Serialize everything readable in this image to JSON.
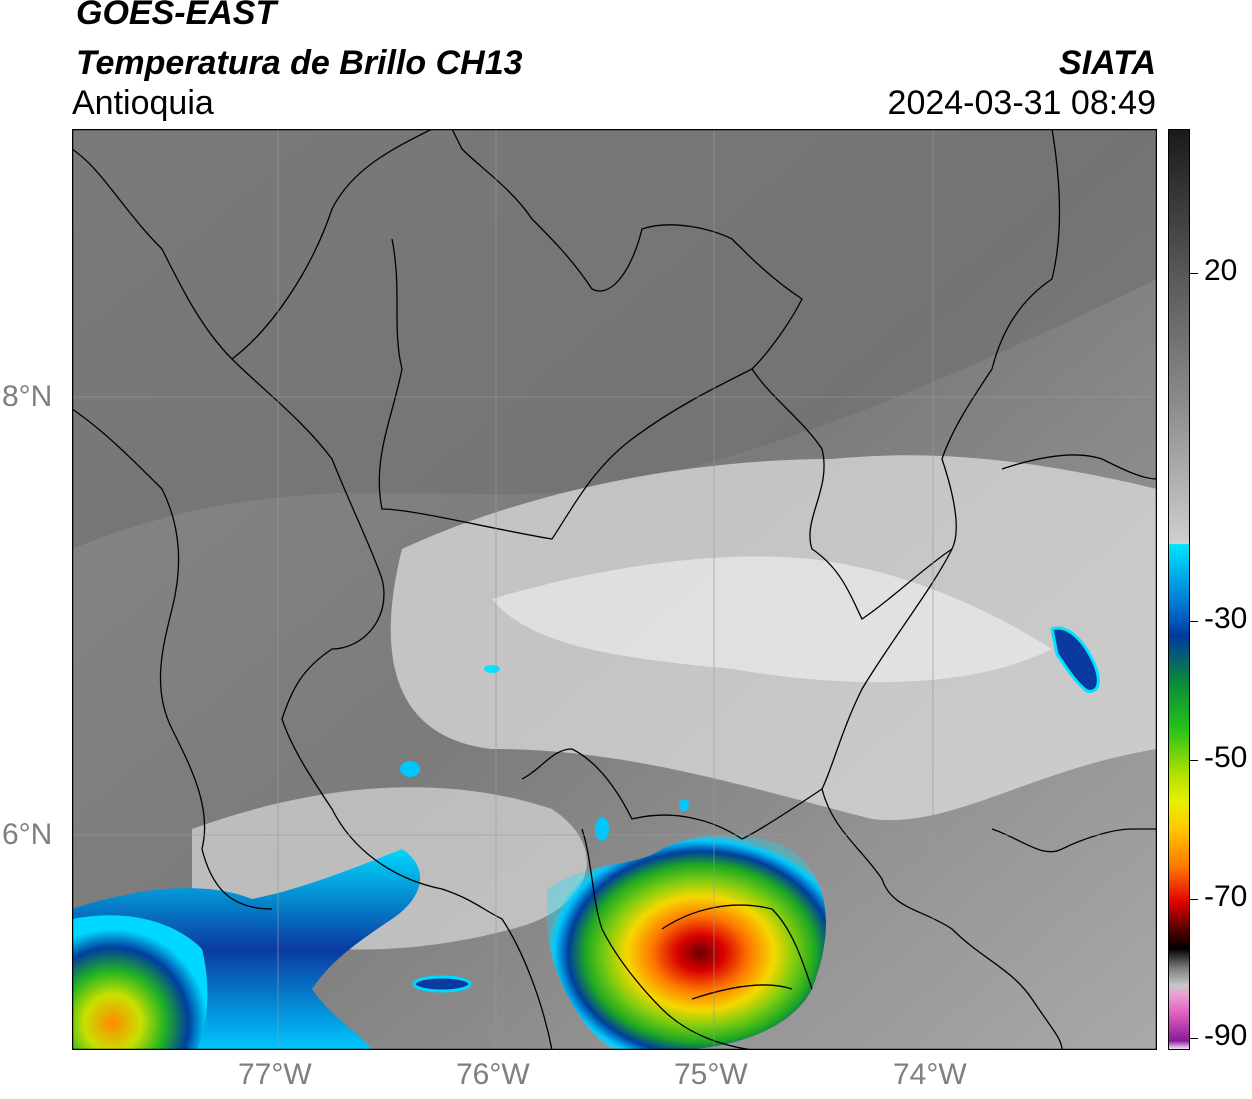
{
  "header": {
    "title_line1": "GOES-EAST",
    "title_line2": "Temperatura de Brillo CH13",
    "region": "Antioquia",
    "organization": "SIATA",
    "datetime": "2024-03-31 08:49"
  },
  "axes": {
    "latitude_labels": [
      "8°N",
      "6°N"
    ],
    "longitude_labels": [
      "77°W",
      "76°W",
      "75°W",
      "74°W"
    ]
  },
  "colorbar": {
    "tick_labels": [
      "20",
      "-30",
      "-50",
      "-70",
      "-90"
    ],
    "colors": {
      "grey_dark": "#1a1a1a",
      "grey_mid": "#8c8c8c",
      "grey_light": "#efefef",
      "cyan": "#00e5ff",
      "blue": "#003a9e",
      "green": "#22c21a",
      "yellow": "#e6f000",
      "orange": "#ff9a00",
      "red": "#e00000",
      "dark_red": "#500000",
      "black": "#000000",
      "pink": "#e060c0",
      "purple": "#8a1a9a"
    }
  }
}
